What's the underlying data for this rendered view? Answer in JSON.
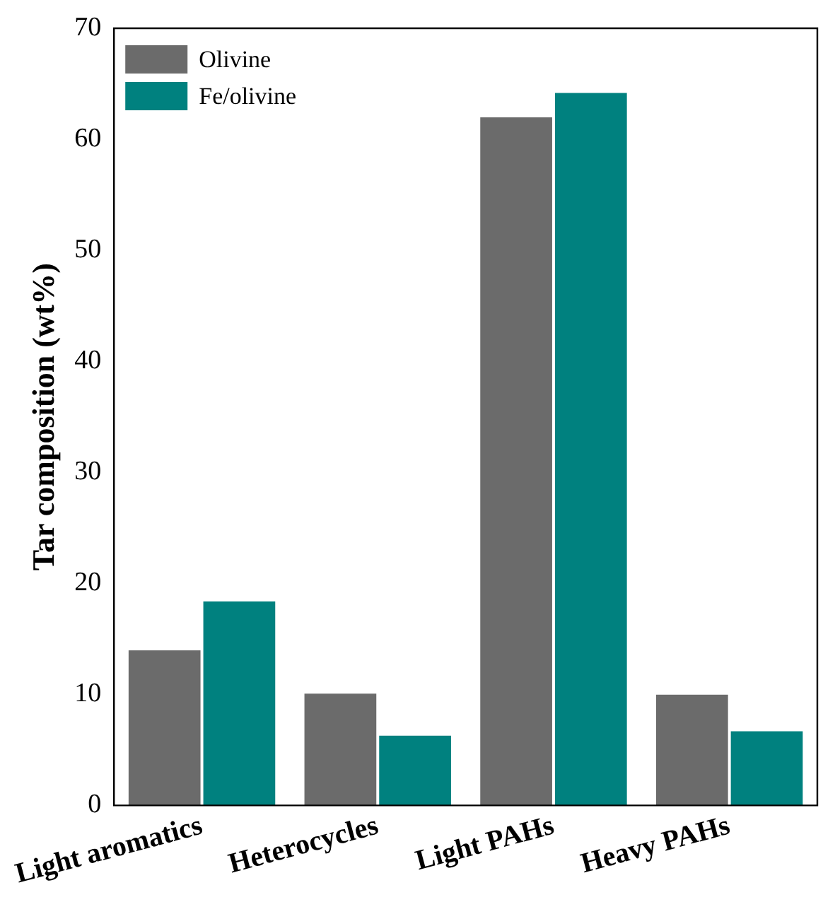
{
  "chart_data": {
    "type": "bar",
    "ylabel": "Tar composition (wt%)",
    "categories": [
      "Light aromatics",
      "Heterocycles",
      "Light PAHs",
      "Heavy PAHs"
    ],
    "series": [
      {
        "name": "Olivine",
        "color": "#6b6b6b",
        "values": [
          14.1,
          10.2,
          62.1,
          10.1
        ]
      },
      {
        "name": "Fe/olivine",
        "color": "#00817f",
        "values": [
          18.5,
          6.4,
          64.3,
          6.8
        ]
      }
    ],
    "ylim": [
      0,
      70
    ],
    "yticks": [
      0,
      10,
      20,
      30,
      40,
      50,
      60,
      70
    ],
    "grid": false,
    "legend": "top left"
  }
}
